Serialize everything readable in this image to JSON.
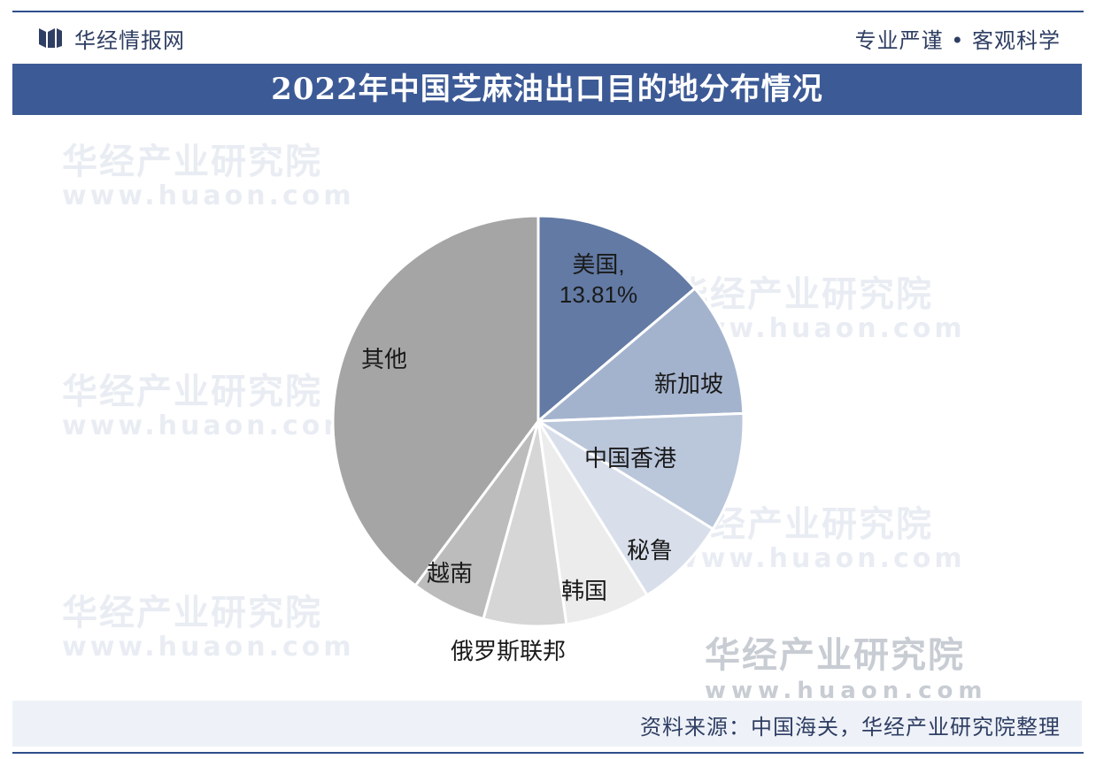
{
  "header": {
    "brand": "华经情报网",
    "slogan": "专业严谨 • 客观科学"
  },
  "watermark": {
    "name": "华经产业研究院",
    "url": "www.huaon.com"
  },
  "chart_data": {
    "type": "pie",
    "title": "2022年中国芝麻油出口目的地分布情况",
    "slices": [
      {
        "label": "美国",
        "value": 13.81,
        "display": "美国,\n13.81%",
        "color": "#627aa4"
      },
      {
        "label": "新加坡",
        "value": 10.6,
        "display": "新加坡",
        "color": "#a4b3cd"
      },
      {
        "label": "中国香港",
        "value": 9.4,
        "display": "中国香港",
        "color": "#bac6da"
      },
      {
        "label": "秘鲁",
        "value": 7.3,
        "display": "秘鲁",
        "color": "#d8dfeb"
      },
      {
        "label": "韩国",
        "value": 6.7,
        "display": "韩国",
        "color": "#ececec"
      },
      {
        "label": "俄罗斯联邦",
        "value": 6.5,
        "display": "俄罗斯联邦",
        "color": "#d6d6d6"
      },
      {
        "label": "越南",
        "value": 5.9,
        "display": "越南",
        "color": "#bcbcbc"
      },
      {
        "label": "其他",
        "value": 39.79,
        "display": "其他",
        "color": "#a5a5a5"
      }
    ]
  },
  "footer": {
    "source": "资料来源：中国海关，华经产业研究院整理"
  }
}
